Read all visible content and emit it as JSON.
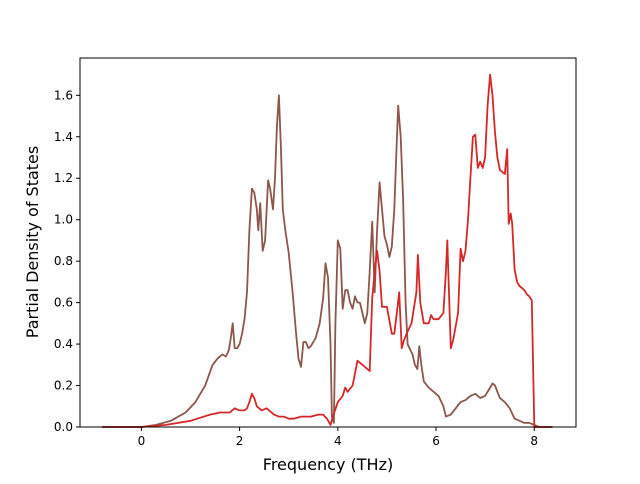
{
  "chart_data": {
    "type": "line",
    "title": "",
    "xlabel": "Frequency (THz)",
    "ylabel": "Partial Density of States",
    "xlim": [
      -1.25,
      8.85
    ],
    "ylim": [
      0.0,
      1.78
    ],
    "xticks": [
      0,
      2,
      4,
      6,
      8
    ],
    "yticks": [
      0.0,
      0.2,
      0.4,
      0.6,
      0.8,
      1.0,
      1.2,
      1.4,
      1.6
    ],
    "grid": false,
    "legend": "none",
    "series": [
      {
        "color": "#8c564b",
        "points": [
          [
            -0.8,
            0.0
          ],
          [
            0.0,
            0.0
          ],
          [
            0.3,
            0.01
          ],
          [
            0.6,
            0.03
          ],
          [
            0.9,
            0.07
          ],
          [
            1.1,
            0.12
          ],
          [
            1.3,
            0.2
          ],
          [
            1.45,
            0.3
          ],
          [
            1.55,
            0.33
          ],
          [
            1.65,
            0.35
          ],
          [
            1.72,
            0.34
          ],
          [
            1.78,
            0.37
          ],
          [
            1.82,
            0.43
          ],
          [
            1.86,
            0.5
          ],
          [
            1.9,
            0.38
          ],
          [
            1.95,
            0.38
          ],
          [
            2.0,
            0.4
          ],
          [
            2.05,
            0.45
          ],
          [
            2.1,
            0.52
          ],
          [
            2.15,
            0.65
          ],
          [
            2.2,
            0.95
          ],
          [
            2.25,
            1.15
          ],
          [
            2.3,
            1.13
          ],
          [
            2.35,
            1.05
          ],
          [
            2.38,
            0.95
          ],
          [
            2.42,
            1.08
          ],
          [
            2.47,
            0.85
          ],
          [
            2.52,
            0.9
          ],
          [
            2.58,
            1.19
          ],
          [
            2.62,
            1.15
          ],
          [
            2.68,
            1.05
          ],
          [
            2.72,
            1.2
          ],
          [
            2.76,
            1.45
          ],
          [
            2.8,
            1.6
          ],
          [
            2.84,
            1.35
          ],
          [
            2.88,
            1.05
          ],
          [
            2.93,
            0.95
          ],
          [
            3.0,
            0.84
          ],
          [
            3.08,
            0.65
          ],
          [
            3.15,
            0.45
          ],
          [
            3.2,
            0.33
          ],
          [
            3.25,
            0.29
          ],
          [
            3.3,
            0.41
          ],
          [
            3.35,
            0.41
          ],
          [
            3.4,
            0.38
          ],
          [
            3.45,
            0.39
          ],
          [
            3.55,
            0.43
          ],
          [
            3.63,
            0.5
          ],
          [
            3.7,
            0.62
          ],
          [
            3.75,
            0.79
          ],
          [
            3.8,
            0.72
          ],
          [
            3.85,
            0.4
          ],
          [
            3.88,
            0.05
          ],
          [
            3.92,
            0.02
          ],
          [
            3.95,
            0.5
          ],
          [
            4.0,
            0.9
          ],
          [
            4.05,
            0.86
          ],
          [
            4.1,
            0.57
          ],
          [
            4.15,
            0.66
          ],
          [
            4.2,
            0.66
          ],
          [
            4.25,
            0.6
          ],
          [
            4.3,
            0.57
          ],
          [
            4.35,
            0.63
          ],
          [
            4.4,
            0.6
          ],
          [
            4.45,
            0.6
          ],
          [
            4.5,
            0.55
          ],
          [
            4.55,
            0.5
          ],
          [
            4.6,
            0.55
          ],
          [
            4.65,
            0.75
          ],
          [
            4.7,
            0.99
          ],
          [
            4.75,
            0.65
          ],
          [
            4.8,
            0.95
          ],
          [
            4.85,
            1.18
          ],
          [
            4.9,
            1.05
          ],
          [
            4.95,
            0.92
          ],
          [
            5.0,
            0.88
          ],
          [
            5.05,
            0.82
          ],
          [
            5.1,
            0.87
          ],
          [
            5.15,
            1.05
          ],
          [
            5.2,
            1.38
          ],
          [
            5.23,
            1.55
          ],
          [
            5.28,
            1.4
          ],
          [
            5.33,
            1.1
          ],
          [
            5.38,
            0.6
          ],
          [
            5.42,
            0.4
          ],
          [
            5.48,
            0.37
          ],
          [
            5.52,
            0.35
          ],
          [
            5.57,
            0.3
          ],
          [
            5.62,
            0.28
          ],
          [
            5.66,
            0.39
          ],
          [
            5.7,
            0.3
          ],
          [
            5.75,
            0.22
          ],
          [
            5.85,
            0.19
          ],
          [
            5.95,
            0.17
          ],
          [
            6.05,
            0.15
          ],
          [
            6.15,
            0.1
          ],
          [
            6.2,
            0.05
          ],
          [
            6.3,
            0.06
          ],
          [
            6.4,
            0.09
          ],
          [
            6.5,
            0.12
          ],
          [
            6.6,
            0.13
          ],
          [
            6.7,
            0.15
          ],
          [
            6.8,
            0.16
          ],
          [
            6.9,
            0.14
          ],
          [
            7.0,
            0.15
          ],
          [
            7.1,
            0.19
          ],
          [
            7.15,
            0.21
          ],
          [
            7.2,
            0.2
          ],
          [
            7.25,
            0.17
          ],
          [
            7.3,
            0.14
          ],
          [
            7.4,
            0.12
          ],
          [
            7.5,
            0.09
          ],
          [
            7.6,
            0.04
          ],
          [
            7.7,
            0.03
          ],
          [
            7.8,
            0.02
          ],
          [
            7.9,
            0.02
          ],
          [
            8.0,
            0.01
          ],
          [
            8.1,
            0.0
          ],
          [
            8.37,
            0.0
          ]
        ]
      },
      {
        "color": "#d62728",
        "points": [
          [
            -0.8,
            0.0
          ],
          [
            0.0,
            0.0
          ],
          [
            0.5,
            0.01
          ],
          [
            1.0,
            0.03
          ],
          [
            1.4,
            0.06
          ],
          [
            1.6,
            0.07
          ],
          [
            1.8,
            0.07
          ],
          [
            1.9,
            0.09
          ],
          [
            2.0,
            0.08
          ],
          [
            2.1,
            0.08
          ],
          [
            2.15,
            0.09
          ],
          [
            2.2,
            0.12
          ],
          [
            2.25,
            0.16
          ],
          [
            2.3,
            0.14
          ],
          [
            2.35,
            0.1
          ],
          [
            2.45,
            0.08
          ],
          [
            2.55,
            0.09
          ],
          [
            2.6,
            0.08
          ],
          [
            2.7,
            0.06
          ],
          [
            2.8,
            0.05
          ],
          [
            2.9,
            0.05
          ],
          [
            3.0,
            0.04
          ],
          [
            3.1,
            0.04
          ],
          [
            3.25,
            0.05
          ],
          [
            3.45,
            0.05
          ],
          [
            3.6,
            0.06
          ],
          [
            3.7,
            0.06
          ],
          [
            3.78,
            0.04
          ],
          [
            3.85,
            0.01
          ],
          [
            3.9,
            0.05
          ],
          [
            4.0,
            0.12
          ],
          [
            4.1,
            0.15
          ],
          [
            4.15,
            0.19
          ],
          [
            4.2,
            0.17
          ],
          [
            4.3,
            0.2
          ],
          [
            4.4,
            0.32
          ],
          [
            4.5,
            0.3
          ],
          [
            4.6,
            0.28
          ],
          [
            4.65,
            0.27
          ],
          [
            4.7,
            0.62
          ],
          [
            4.75,
            0.75
          ],
          [
            4.8,
            0.85
          ],
          [
            4.85,
            0.75
          ],
          [
            4.9,
            0.58
          ],
          [
            5.0,
            0.58
          ],
          [
            5.1,
            0.45
          ],
          [
            5.15,
            0.45
          ],
          [
            5.2,
            0.55
          ],
          [
            5.25,
            0.65
          ],
          [
            5.3,
            0.38
          ],
          [
            5.35,
            0.42
          ],
          [
            5.4,
            0.45
          ],
          [
            5.5,
            0.5
          ],
          [
            5.6,
            0.65
          ],
          [
            5.63,
            0.83
          ],
          [
            5.68,
            0.6
          ],
          [
            5.75,
            0.5
          ],
          [
            5.85,
            0.5
          ],
          [
            5.9,
            0.54
          ],
          [
            5.95,
            0.52
          ],
          [
            6.05,
            0.52
          ],
          [
            6.15,
            0.55
          ],
          [
            6.2,
            0.75
          ],
          [
            6.23,
            0.9
          ],
          [
            6.27,
            0.6
          ],
          [
            6.3,
            0.38
          ],
          [
            6.35,
            0.42
          ],
          [
            6.45,
            0.55
          ],
          [
            6.5,
            0.86
          ],
          [
            6.55,
            0.8
          ],
          [
            6.6,
            0.85
          ],
          [
            6.65,
            1.0
          ],
          [
            6.7,
            1.2
          ],
          [
            6.75,
            1.4
          ],
          [
            6.8,
            1.41
          ],
          [
            6.85,
            1.25
          ],
          [
            6.9,
            1.28
          ],
          [
            6.95,
            1.25
          ],
          [
            7.0,
            1.3
          ],
          [
            7.05,
            1.55
          ],
          [
            7.1,
            1.7
          ],
          [
            7.15,
            1.6
          ],
          [
            7.2,
            1.42
          ],
          [
            7.25,
            1.3
          ],
          [
            7.3,
            1.24
          ],
          [
            7.35,
            1.23
          ],
          [
            7.4,
            1.22
          ],
          [
            7.45,
            1.34
          ],
          [
            7.48,
            0.98
          ],
          [
            7.52,
            1.03
          ],
          [
            7.55,
            0.98
          ],
          [
            7.6,
            0.76
          ],
          [
            7.65,
            0.7
          ],
          [
            7.7,
            0.68
          ],
          [
            7.75,
            0.67
          ],
          [
            7.8,
            0.66
          ],
          [
            7.85,
            0.64
          ],
          [
            7.9,
            0.63
          ],
          [
            7.95,
            0.61
          ],
          [
            8.0,
            0.0
          ],
          [
            8.37,
            0.0
          ]
        ]
      }
    ]
  }
}
